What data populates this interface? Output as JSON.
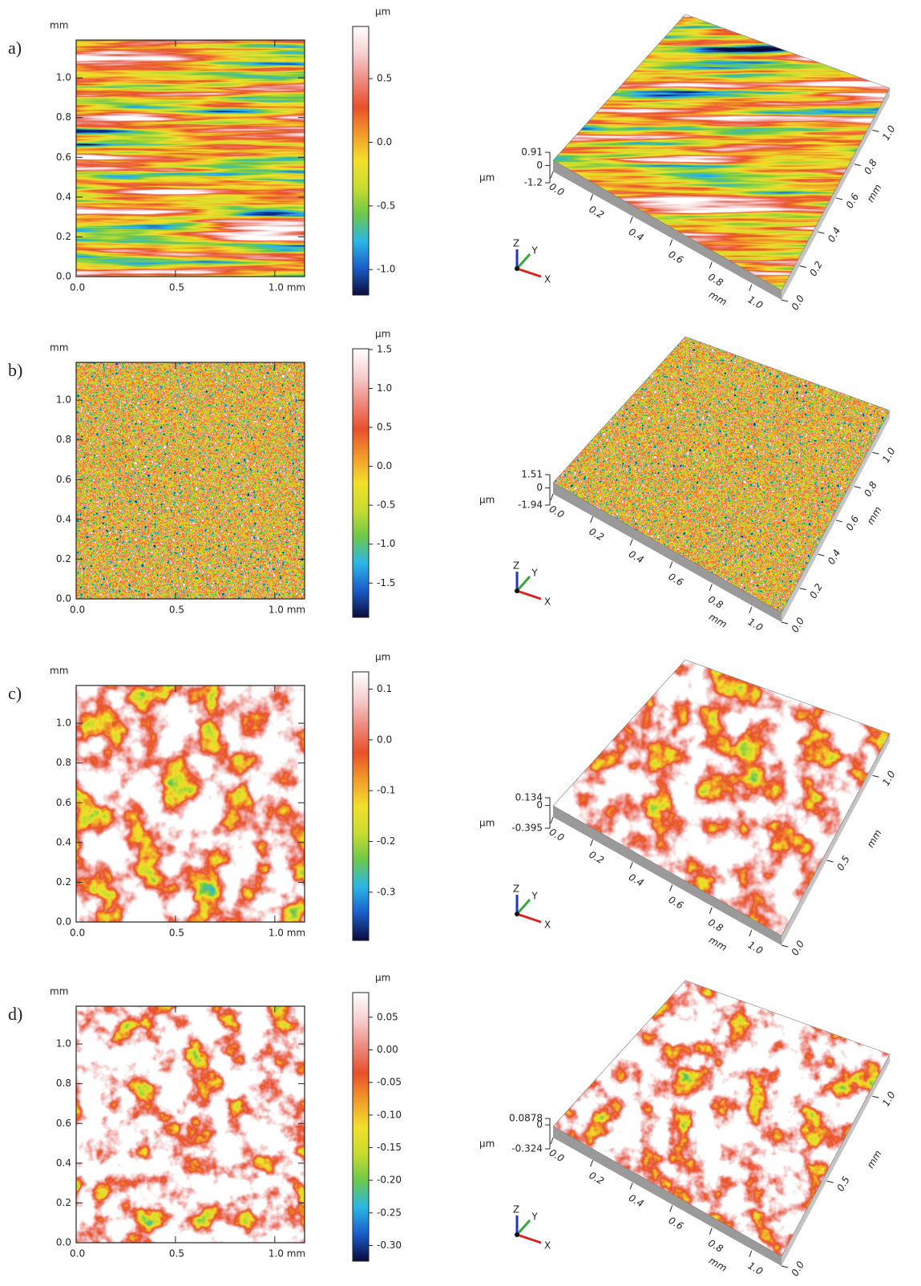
{
  "colormap": [
    "#0b0b3a",
    "#1a5cc8",
    "#2bb6e8",
    "#6cc84a",
    "#c8dc30",
    "#f2e02a",
    "#f29a2a",
    "#e8502a",
    "#ee8a80",
    "#f6d0d0",
    "#ffffff"
  ],
  "chart_data": [
    {
      "type": "heatmap",
      "panel_label": "a)",
      "ylabel": "mm",
      "xlim": [
        0,
        1.15
      ],
      "ylim": [
        0,
        1.19
      ],
      "xticks": [
        {
          "value": 0,
          "label": "0.0"
        },
        0.5,
        {
          "value": 1,
          "label": "1.0 mm"
        }
      ],
      "yticks": [
        {
          "value": 0,
          "label": "0.0"
        },
        0.2,
        0.4,
        0.6,
        0.8,
        {
          "value": 1,
          "label": "1.0"
        }
      ],
      "colorbar": {
        "label": "µm",
        "lim": [
          -1.2,
          0.91
        ],
        "ticks": [
          0.5,
          {
            "value": 0,
            "label": "0.0"
          },
          -0.5,
          {
            "value": -1,
            "label": "-1.0"
          }
        ]
      }
    },
    {
      "type": "surface",
      "zlabel": "µm",
      "zlim": [
        -1.2,
        0.91
      ],
      "zticks": [
        0.91,
        0,
        -1.2
      ],
      "xlabel": "mm",
      "ylabel": "mm",
      "xlim": [
        0,
        1.15
      ],
      "ylim": [
        0,
        1.19
      ],
      "xticks": [
        {
          "value": 0,
          "label": "0.0"
        },
        0.2,
        0.4,
        0.6,
        0.8,
        {
          "value": 1,
          "label": "1.0"
        }
      ],
      "yticks": [
        {
          "value": 0,
          "label": "0.0"
        },
        0.2,
        0.4,
        0.6,
        0.8,
        {
          "value": 1,
          "label": "1.0"
        }
      ],
      "axes_triad": [
        "X",
        "Y",
        "Z"
      ]
    },
    {
      "type": "heatmap",
      "panel_label": "b)",
      "ylabel": "mm",
      "xlim": [
        0,
        1.15
      ],
      "ylim": [
        0,
        1.19
      ],
      "xticks": [
        {
          "value": 0,
          "label": "0.0"
        },
        0.5,
        {
          "value": 1,
          "label": "1.0 mm"
        }
      ],
      "yticks": [
        {
          "value": 0,
          "label": "0.0"
        },
        0.2,
        0.4,
        0.6,
        0.8,
        {
          "value": 1,
          "label": "1.0"
        }
      ],
      "colorbar": {
        "label": "µm",
        "lim": [
          -1.94,
          1.51
        ],
        "ticks": [
          1.5,
          {
            "value": 1,
            "label": "1.0"
          },
          0.5,
          {
            "value": 0,
            "label": "0.0"
          },
          -0.5,
          {
            "value": -1,
            "label": "-1.0"
          },
          -1.5
        ]
      }
    },
    {
      "type": "surface",
      "zlabel": "µm",
      "zlim": [
        -1.94,
        1.51
      ],
      "zticks": [
        1.51,
        0,
        -1.94
      ],
      "xlabel": "mm",
      "ylabel": "mm",
      "xlim": [
        0,
        1.15
      ],
      "ylim": [
        0,
        1.19
      ],
      "xticks": [
        {
          "value": 0,
          "label": "0.0"
        },
        0.2,
        0.4,
        0.6,
        0.8,
        {
          "value": 1,
          "label": "1.0"
        }
      ],
      "yticks": [
        {
          "value": 0,
          "label": "0.0"
        },
        0.2,
        0.4,
        0.6,
        0.8,
        {
          "value": 1,
          "label": "1.0"
        }
      ],
      "axes_triad": [
        "X",
        "Y",
        "Z"
      ]
    },
    {
      "type": "heatmap",
      "panel_label": "c)",
      "ylabel": "mm",
      "xlim": [
        0,
        1.15
      ],
      "ylim": [
        0,
        1.19
      ],
      "xticks": [
        {
          "value": 0,
          "label": "0.0"
        },
        0.5,
        {
          "value": 1,
          "label": "1.0 mm"
        }
      ],
      "yticks": [
        {
          "value": 0,
          "label": "0.0"
        },
        0.2,
        0.4,
        0.6,
        0.8,
        {
          "value": 1,
          "label": "1.0"
        }
      ],
      "colorbar": {
        "label": "µm",
        "lim": [
          -0.395,
          0.134
        ],
        "ticks": [
          0.1,
          {
            "value": 0,
            "label": "0.0"
          },
          -0.1,
          -0.2,
          -0.3
        ]
      }
    },
    {
      "type": "surface",
      "zlabel": "µm",
      "zlim": [
        -0.395,
        0.134
      ],
      "zticks": [
        0.134,
        0,
        -0.395
      ],
      "xlabel": "mm",
      "ylabel": "mm",
      "xlim": [
        0,
        1.15
      ],
      "ylim": [
        0,
        1.19
      ],
      "xticks": [
        {
          "value": 0,
          "label": "0.0"
        },
        0.2,
        0.4,
        0.6,
        0.8,
        {
          "value": 1,
          "label": "1.0"
        }
      ],
      "yticks": [
        {
          "value": 0,
          "label": "0.0"
        },
        0.5,
        {
          "value": 1,
          "label": "1.0"
        }
      ],
      "axes_triad": [
        "X",
        "Y",
        "Z"
      ]
    },
    {
      "type": "heatmap",
      "panel_label": "d)",
      "ylabel": "mm",
      "xlim": [
        0,
        1.15
      ],
      "ylim": [
        0,
        1.19
      ],
      "xticks": [
        {
          "value": 0,
          "label": "0.0"
        },
        0.5,
        {
          "value": 1,
          "label": "1.0 mm"
        }
      ],
      "yticks": [
        {
          "value": 0,
          "label": "0.0"
        },
        0.2,
        0.4,
        0.6,
        0.8,
        {
          "value": 1,
          "label": "1.0"
        }
      ],
      "colorbar": {
        "label": "µm",
        "lim": [
          -0.324,
          0.0878
        ],
        "ticks": [
          0.05,
          {
            "value": 0,
            "label": "0.00"
          },
          -0.05,
          {
            "value": -0.1,
            "label": "-0.10"
          },
          -0.15,
          {
            "value": -0.2,
            "label": "-0.20"
          },
          -0.25,
          {
            "value": -0.3,
            "label": "-0.30"
          }
        ]
      }
    },
    {
      "type": "surface",
      "zlabel": "µm",
      "zlim": [
        -0.324,
        0.0878
      ],
      "zticks": [
        0.0878,
        0,
        -0.324
      ],
      "xlabel": "mm",
      "ylabel": "mm",
      "xlim": [
        0,
        1.15
      ],
      "ylim": [
        0,
        1.19
      ],
      "xticks": [
        {
          "value": 0,
          "label": "0.0"
        },
        0.2,
        0.4,
        0.6,
        0.8,
        {
          "value": 1,
          "label": "1.0"
        }
      ],
      "yticks": [
        {
          "value": 0,
          "label": "0.0"
        },
        0.5,
        {
          "value": 1,
          "label": "1.0"
        }
      ],
      "axes_triad": [
        "X",
        "Y",
        "Z"
      ]
    }
  ]
}
